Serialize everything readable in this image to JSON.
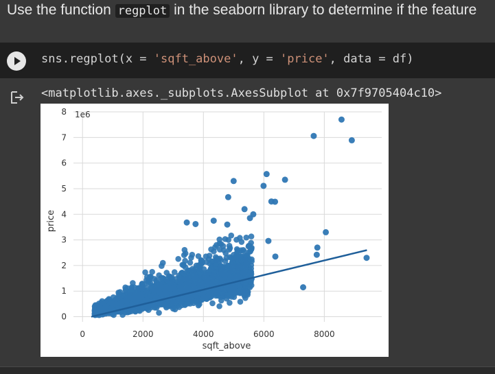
{
  "markdown": {
    "prefix": "Use the function ",
    "code": "regplot",
    "suffix": " in the seaborn library to determine if the feature"
  },
  "code_cell": {
    "run_icon": "play-icon",
    "code_prefix": "sns.regplot(x = ",
    "x_arg": "'sqft_above'",
    "mid": ", y = ",
    "y_arg": "'price'",
    "code_suffix": ", data = df)"
  },
  "output": {
    "icon": "output-arrow-icon",
    "text": "<matplotlib.axes._subplots.AxesSubplot at 0x7f9705404c10>"
  },
  "chart_data": {
    "type": "scatter",
    "xlabel": "sqft_above",
    "ylabel": "price",
    "y_offset_label": "1e6",
    "xlim": [
      -300,
      9900
    ],
    "ylim": [
      -0.2,
      8
    ],
    "x_ticks": [
      0,
      2000,
      4000,
      6000,
      8000
    ],
    "y_ticks": [
      0,
      1,
      2,
      3,
      4,
      5,
      6,
      7,
      8
    ],
    "grid": true,
    "point_color": "#2f77b4",
    "regression_line": {
      "x": [
        290,
        9410
      ],
      "y": [
        0.0,
        2.6
      ]
    },
    "outliers": [
      {
        "x": 8570,
        "y": 7.7
      },
      {
        "x": 7650,
        "y": 7.06
      },
      {
        "x": 8910,
        "y": 6.89
      },
      {
        "x": 6090,
        "y": 5.57
      },
      {
        "x": 6700,
        "y": 5.35
      },
      {
        "x": 5000,
        "y": 5.3
      },
      {
        "x": 5990,
        "y": 5.11
      },
      {
        "x": 4820,
        "y": 4.67
      },
      {
        "x": 6370,
        "y": 4.49
      },
      {
        "x": 6250,
        "y": 4.5
      },
      {
        "x": 5360,
        "y": 4.2
      },
      {
        "x": 5650,
        "y": 4.0
      },
      {
        "x": 5540,
        "y": 3.85
      },
      {
        "x": 4340,
        "y": 3.75
      },
      {
        "x": 3450,
        "y": 3.68
      },
      {
        "x": 3740,
        "y": 3.62
      },
      {
        "x": 4790,
        "y": 3.6
      },
      {
        "x": 8050,
        "y": 3.3
      },
      {
        "x": 7770,
        "y": 2.7
      },
      {
        "x": 9400,
        "y": 2.3
      },
      {
        "x": 7300,
        "y": 1.15
      },
      {
        "x": 7750,
        "y": 2.42
      },
      {
        "x": 6150,
        "y": 2.96
      },
      {
        "x": 6380,
        "y": 2.35
      }
    ]
  }
}
